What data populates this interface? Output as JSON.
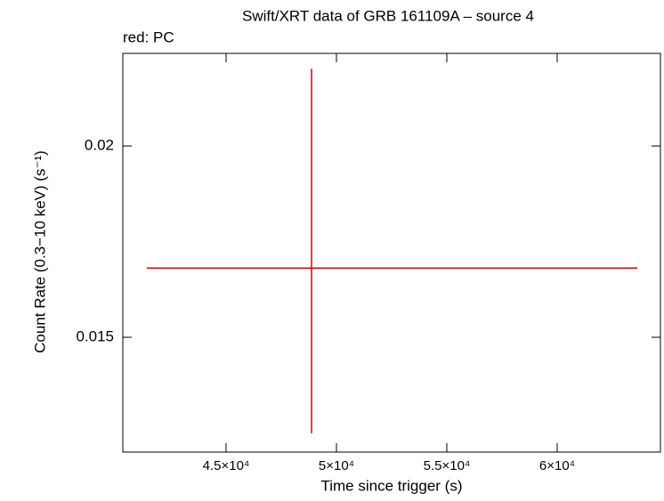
{
  "chart_data": {
    "type": "errorbar",
    "title": "Swift/XRT data of GRB 161109A – source 4",
    "subtitle": "red: PC",
    "x_label": "Time since trigger (s)",
    "y_label": "Count Rate (0.3−10 keV) (s⁻¹)",
    "xlim": [
      40323,
      64677
    ],
    "ylim": [
      0.012,
      0.02242
    ],
    "xticks": [
      {
        "value": 45000,
        "label": "4.5×10⁴"
      },
      {
        "value": 50000,
        "label": "5×10⁴"
      },
      {
        "value": 55000,
        "label": "5.5×10⁴"
      },
      {
        "value": 60000,
        "label": "6×10⁴"
      }
    ],
    "yticks": [
      0.015,
      0.02
    ],
    "series": [
      {
        "name": "PC",
        "color": "#e00000",
        "x": [
          48871
        ],
        "xerr_minus": [
          7460
        ],
        "xerr_plus": [
          14758
        ],
        "values": [
          0.01681
        ],
        "yerr_minus": [
          0.00432
        ],
        "yerr_plus": [
          0.00521
        ]
      }
    ]
  }
}
